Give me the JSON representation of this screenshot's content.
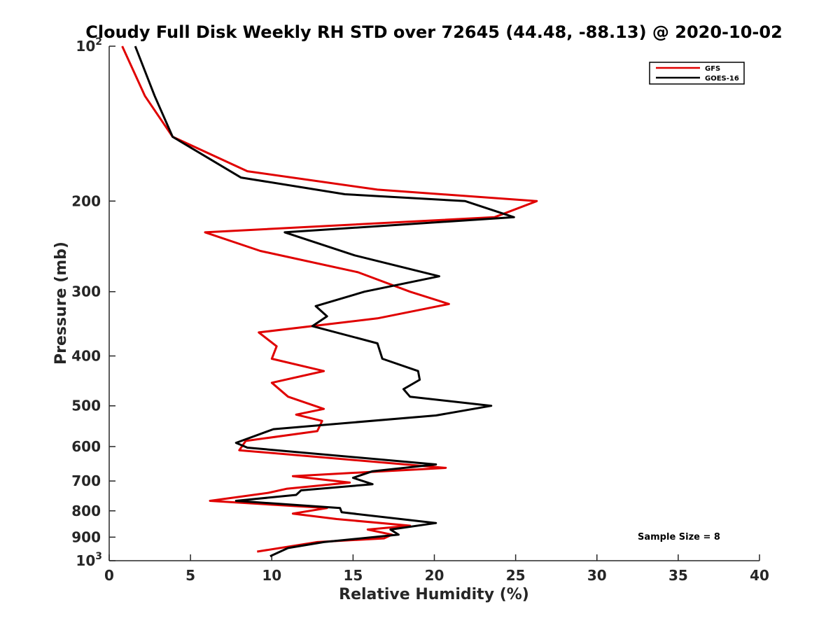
{
  "chart_data": {
    "type": "line",
    "title": "Cloudy Full Disk Weekly RH STD over 72645 (44.48, -88.13) @ 2020-10-02",
    "xlabel": "Relative Humidity (%)",
    "ylabel": "Pressure (mb)",
    "xlim": [
      0,
      40
    ],
    "ylim": [
      100,
      1000
    ],
    "y_scale": "log",
    "y_reversed": true,
    "x_ticks": [
      "0",
      "5",
      "10",
      "15",
      "20",
      "25",
      "30",
      "35",
      "40"
    ],
    "x_tick_values": [
      0,
      5,
      10,
      15,
      20,
      25,
      30,
      35,
      40
    ],
    "y_ticks": [
      {
        "value": 100,
        "label": "10",
        "sup": "2"
      },
      {
        "value": 200,
        "label": "200",
        "sup": ""
      },
      {
        "value": 300,
        "label": "300",
        "sup": ""
      },
      {
        "value": 400,
        "label": "400",
        "sup": ""
      },
      {
        "value": 500,
        "label": "500",
        "sup": ""
      },
      {
        "value": 600,
        "label": "600",
        "sup": ""
      },
      {
        "value": 700,
        "label": "700",
        "sup": ""
      },
      {
        "value": 800,
        "label": "800",
        "sup": ""
      },
      {
        "value": 900,
        "label": "900",
        "sup": ""
      },
      {
        "value": 1000,
        "label": "10",
        "sup": "3"
      }
    ],
    "legend_position": "top-right",
    "grid": false,
    "annotation": "Sample Size = 8",
    "series": [
      {
        "name": "GFS",
        "color": "#e00000",
        "points": [
          [
            0.8,
            100
          ],
          [
            2.2,
            125
          ],
          [
            3.9,
            150
          ],
          [
            8.5,
            175
          ],
          [
            16.5,
            190
          ],
          [
            26.3,
            200
          ],
          [
            23.7,
            215
          ],
          [
            5.9,
            230
          ],
          [
            9.3,
            250
          ],
          [
            15.3,
            275
          ],
          [
            18.5,
            300
          ],
          [
            20.9,
            317
          ],
          [
            16.5,
            338
          ],
          [
            9.2,
            360
          ],
          [
            10.3,
            383
          ],
          [
            10.0,
            405
          ],
          [
            13.2,
            428
          ],
          [
            10.0,
            451
          ],
          [
            11.0,
            480
          ],
          [
            13.2,
            507
          ],
          [
            11.5,
            520
          ],
          [
            13.1,
            535
          ],
          [
            12.8,
            560
          ],
          [
            8.4,
            585
          ],
          [
            8.0,
            610
          ],
          [
            20.7,
            660
          ],
          [
            11.3,
            685
          ],
          [
            14.8,
            705
          ],
          [
            10.9,
            725
          ],
          [
            9.8,
            738
          ],
          [
            6.2,
            765
          ],
          [
            13.4,
            790
          ],
          [
            11.3,
            810
          ],
          [
            14.0,
            830
          ],
          [
            18.5,
            855
          ],
          [
            15.9,
            870
          ],
          [
            17.4,
            890
          ],
          [
            16.9,
            905
          ],
          [
            12.8,
            920
          ],
          [
            9.1,
            960
          ]
        ]
      },
      {
        "name": "GOES-16",
        "color": "#000000",
        "points": [
          [
            1.6,
            100
          ],
          [
            2.8,
            125
          ],
          [
            3.9,
            150
          ],
          [
            8.1,
            180
          ],
          [
            14.5,
            194
          ],
          [
            21.9,
            200
          ],
          [
            24.9,
            215
          ],
          [
            10.8,
            230
          ],
          [
            15.1,
            255
          ],
          [
            20.3,
            280
          ],
          [
            15.7,
            300
          ],
          [
            12.7,
            320
          ],
          [
            13.4,
            335
          ],
          [
            12.5,
            350
          ],
          [
            16.5,
            378
          ],
          [
            16.8,
            405
          ],
          [
            19.0,
            428
          ],
          [
            19.1,
            445
          ],
          [
            18.1,
            464
          ],
          [
            18.5,
            480
          ],
          [
            23.5,
            500
          ],
          [
            20.1,
            522
          ],
          [
            10.1,
            555
          ],
          [
            7.8,
            590
          ],
          [
            8.5,
            603
          ],
          [
            20.1,
            650
          ],
          [
            16.2,
            670
          ],
          [
            15.0,
            690
          ],
          [
            16.2,
            710
          ],
          [
            11.8,
            730
          ],
          [
            11.5,
            745
          ],
          [
            7.8,
            765
          ],
          [
            14.2,
            790
          ],
          [
            14.3,
            805
          ],
          [
            20.1,
            845
          ],
          [
            17.3,
            870
          ],
          [
            17.8,
            890
          ],
          [
            13.2,
            920
          ],
          [
            11.0,
            945
          ],
          [
            9.9,
            980
          ]
        ]
      }
    ]
  }
}
